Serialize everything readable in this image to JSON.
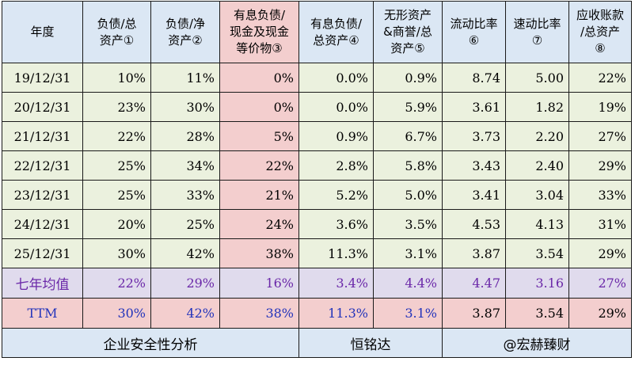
{
  "headers": [
    {
      "lines": [
        "年度"
      ]
    },
    {
      "lines": [
        "负债/总",
        "资产①"
      ]
    },
    {
      "lines": [
        "负债/净",
        "资产②"
      ]
    },
    {
      "lines": [
        "有息负债/",
        "现金及现金",
        "等价物③"
      ]
    },
    {
      "lines": [
        "有息负债/",
        "总资产④"
      ]
    },
    {
      "lines": [
        "无形资产",
        "&商誉/总",
        "资产⑤"
      ]
    },
    {
      "lines": [
        "流动比率",
        "⑥"
      ]
    },
    {
      "lines": [
        "速动比率",
        "⑦"
      ]
    },
    {
      "lines": [
        "应收账款",
        "/总资产",
        "⑧"
      ]
    }
  ],
  "rows": [
    [
      "19/12/31",
      "10%",
      "11%",
      "0%",
      "0.0%",
      "0.9%",
      "8.74",
      "5.00",
      "22%"
    ],
    [
      "20/12/31",
      "23%",
      "30%",
      "0%",
      "0.0%",
      "5.9%",
      "3.61",
      "1.82",
      "19%"
    ],
    [
      "21/12/31",
      "22%",
      "28%",
      "5%",
      "0.9%",
      "6.7%",
      "3.73",
      "2.20",
      "27%"
    ],
    [
      "22/12/31",
      "25%",
      "34%",
      "22%",
      "2.8%",
      "5.8%",
      "3.43",
      "2.40",
      "29%"
    ],
    [
      "23/12/31",
      "25%",
      "33%",
      "21%",
      "5.2%",
      "5.0%",
      "3.41",
      "3.04",
      "33%"
    ],
    [
      "24/12/31",
      "20%",
      "25%",
      "24%",
      "3.6%",
      "3.5%",
      "4.53",
      "4.13",
      "31%"
    ],
    [
      "25/12/31",
      "30%",
      "42%",
      "38%",
      "11.3%",
      "3.1%",
      "3.87",
      "3.54",
      "29%"
    ]
  ],
  "average_row": [
    "七年均值",
    "22%",
    "29%",
    "16%",
    "3.4%",
    "4.4%",
    "4.47",
    "3.16",
    "27%"
  ],
  "ttm_row": [
    "TTM",
    "30%",
    "42%",
    "38%",
    "11.3%",
    "3.1%",
    "3.87",
    "3.54",
    "29%"
  ],
  "footer": {
    "left": "企业安全性分析",
    "middle": "恒铭达",
    "right": "@宏赫臻财"
  },
  "colors": {
    "header_bg": "#dbe7f4",
    "highlight_bg": "#f3cece",
    "row_bg": "#ebf1de",
    "average_bg": "#e0dbed",
    "average_text": "#6a27a8",
    "ttm_text": "#2233bb"
  }
}
